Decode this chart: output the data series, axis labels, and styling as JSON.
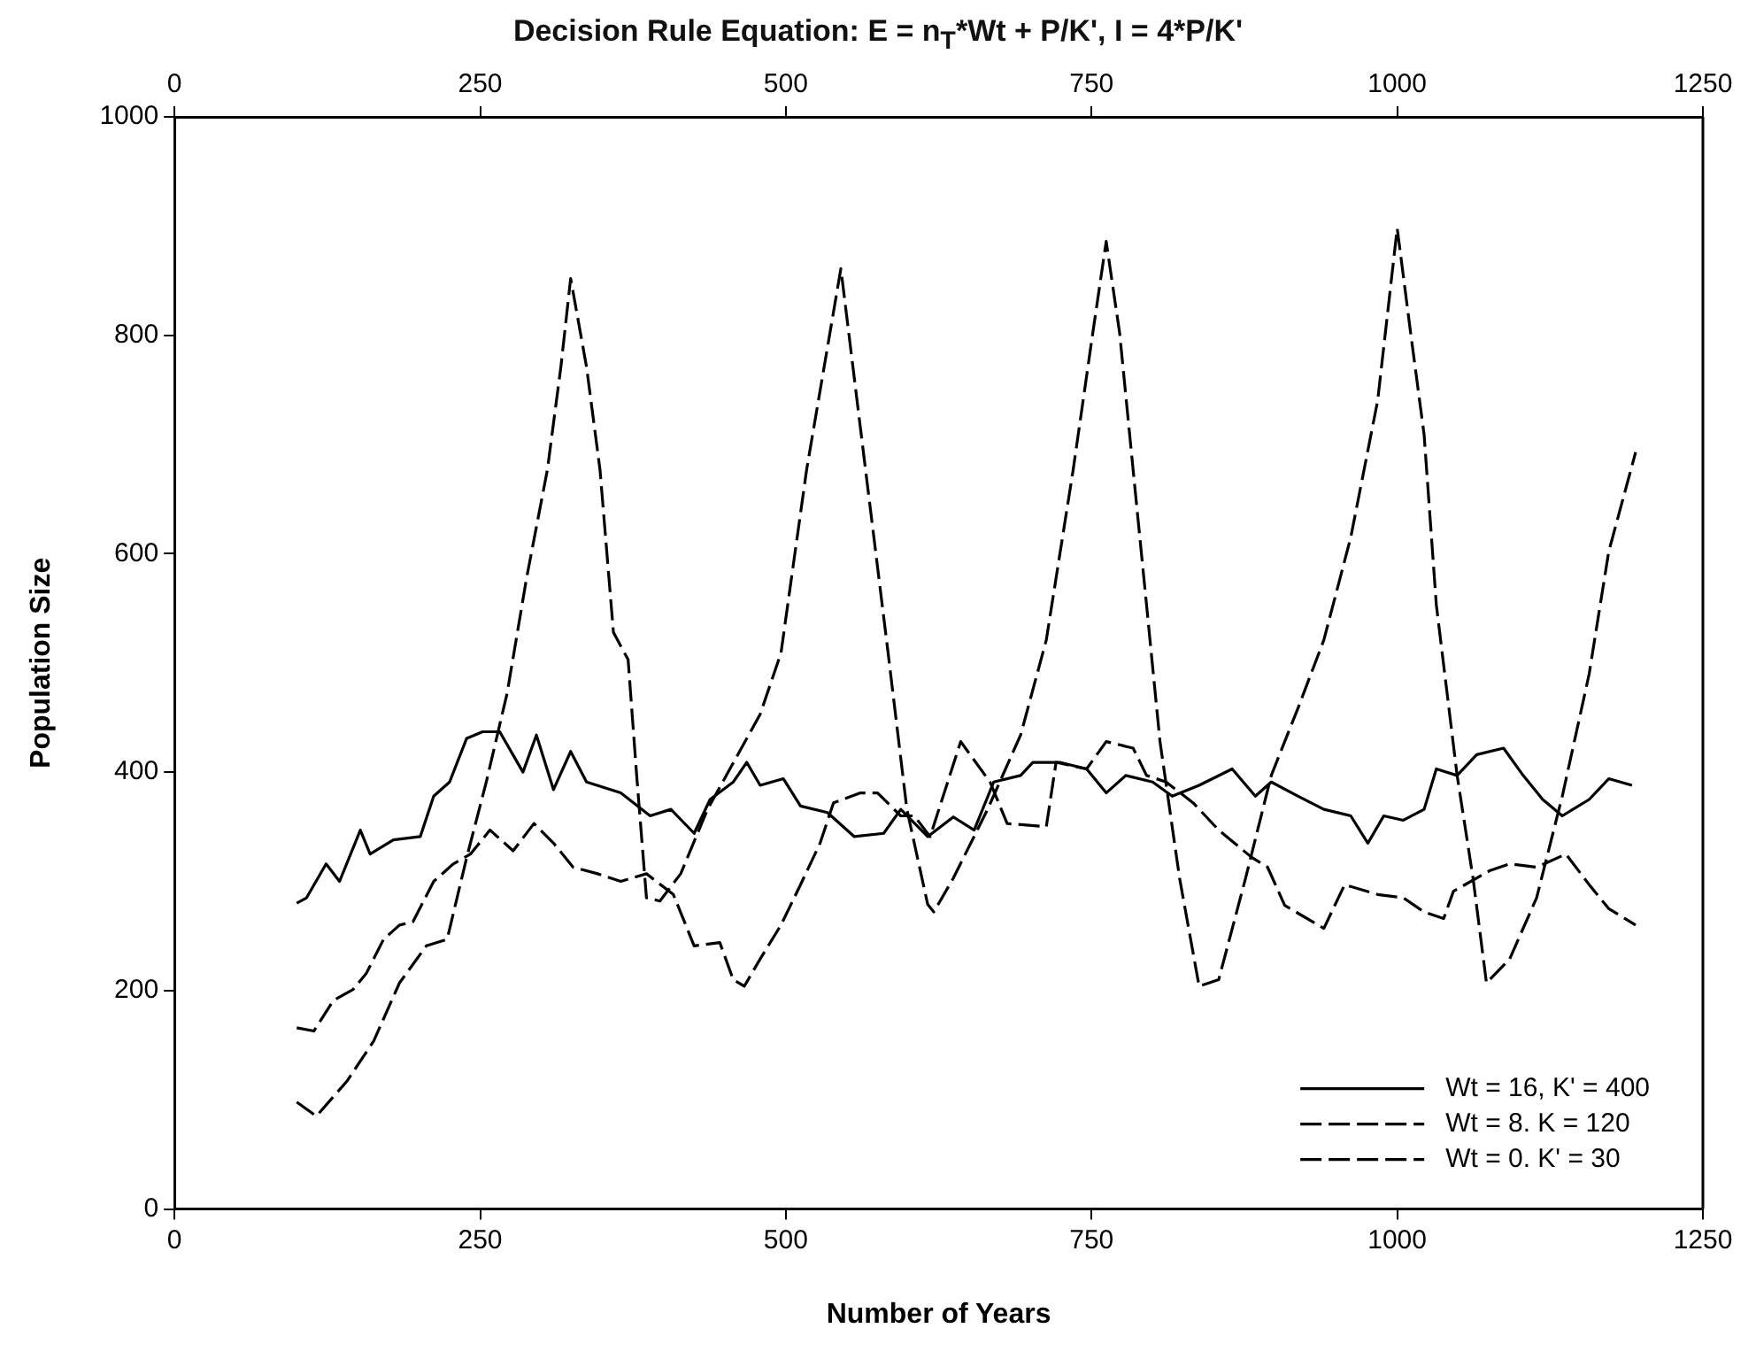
{
  "chart_data": {
    "type": "line",
    "title": "Decision Rule Equation: E = n$_{T}$*Wt + P/K', I = 4*P/K'",
    "xlabel": "Number of Years",
    "ylabel": "Population Size",
    "xlim": [
      0,
      1250
    ],
    "xticks": [
      0,
      250,
      500,
      750,
      1000,
      1250
    ],
    "x2lim": [
      0,
      1250
    ],
    "x2ticks": [
      0,
      250,
      500,
      750,
      1000,
      1250
    ],
    "ylim": [
      0,
      1000
    ],
    "yticks": [
      0,
      200,
      400,
      600,
      800,
      1000
    ],
    "grid": false,
    "legend": "bottom right",
    "marker": "none",
    "series": [
      {
        "name": "Wt = 16, K' = 400",
        "color": "#000000",
        "line_style": "solid",
        "x": [
          100,
          108,
          124,
          135,
          152,
          160,
          179,
          201,
          212,
          225,
          239,
          252,
          266,
          285,
          296,
          310,
          324,
          337,
          365,
          389,
          406,
          425,
          438,
          457,
          468,
          479,
          498,
          512,
          534,
          556,
          580,
          594,
          616,
          637,
          654,
          670,
          692,
          702,
          724,
          746,
          762,
          778,
          800,
          816,
          838,
          865,
          884,
          897,
          919,
          940,
          962,
          976,
          989,
          1005,
          1022,
          1032,
          1049,
          1065,
          1087,
          1103,
          1119,
          1135,
          1157,
          1173,
          1192
        ],
        "values": [
          280,
          285,
          316,
          300,
          347,
          325,
          338,
          341,
          378,
          391,
          431,
          437,
          437,
          400,
          434,
          384,
          419,
          391,
          381,
          360,
          366,
          344,
          375,
          391,
          409,
          388,
          394,
          369,
          363,
          341,
          344,
          366,
          341,
          359,
          347,
          391,
          397,
          409,
          409,
          403,
          381,
          397,
          391,
          378,
          388,
          403,
          378,
          391,
          378,
          366,
          360,
          335,
          360,
          356,
          366,
          403,
          397,
          416,
          422,
          397,
          375,
          360,
          375,
          394,
          388
        ]
      },
      {
        "name": "Wt = 8. K = 120",
        "color": "#000000",
        "line_style": "dashed",
        "x": [
          100,
          114,
          130,
          146,
          157,
          171,
          184,
          195,
          212,
          228,
          242,
          258,
          277,
          294,
          310,
          326,
          346,
          365,
          386,
          408,
          425,
          446,
          457,
          466,
          479,
          496,
          512,
          528,
          539,
          561,
          575,
          594,
          605,
          618,
          643,
          667,
          681,
          713,
          721,
          746,
          762,
          784,
          795,
          811,
          833,
          854,
          881,
          894,
          908,
          940,
          957,
          984,
          1005,
          1022,
          1038,
          1046,
          1076,
          1092,
          1114,
          1138,
          1157,
          1173,
          1195
        ],
        "values": [
          166,
          163,
          191,
          201,
          216,
          247,
          260,
          263,
          300,
          316,
          325,
          347,
          328,
          353,
          335,
          313,
          307,
          300,
          307,
          288,
          241,
          244,
          210,
          204,
          229,
          260,
          297,
          335,
          372,
          381,
          381,
          360,
          360,
          341,
          428,
          391,
          353,
          350,
          409,
          403,
          428,
          422,
          397,
          391,
          372,
          347,
          322,
          313,
          278,
          257,
          297,
          288,
          285,
          272,
          266,
          291,
          310,
          316,
          313,
          325,
          297,
          275,
          260
        ]
      },
      {
        "name": "Wt = 0. K' = 30",
        "color": "#000000",
        "line_style": "dashed",
        "x": [
          100,
          116,
          141,
          163,
          184,
          206,
          223,
          239,
          255,
          272,
          288,
          305,
          316,
          324,
          337,
          348,
          359,
          371,
          378,
          386,
          397,
          414,
          436,
          479,
          496,
          517,
          545,
          561,
          572,
          583,
          599,
          616,
          621,
          637,
          665,
          692,
          713,
          735,
          751,
          762,
          773,
          784,
          795,
          806,
          822,
          838,
          854,
          876,
          897,
          919,
          940,
          962,
          984,
          1000,
          1011,
          1022,
          1032,
          1049,
          1062,
          1073,
          1092,
          1114,
          1135,
          1157,
          1173,
          1195
        ],
        "values": [
          98,
          85,
          117,
          154,
          207,
          241,
          247,
          322,
          391,
          472,
          578,
          677,
          771,
          852,
          771,
          677,
          528,
          503,
          397,
          285,
          282,
          307,
          366,
          453,
          509,
          677,
          861,
          715,
          615,
          515,
          366,
          279,
          272,
          303,
          366,
          434,
          521,
          677,
          802,
          886,
          802,
          677,
          553,
          428,
          303,
          204,
          210,
          303,
          397,
          459,
          521,
          615,
          740,
          898,
          802,
          709,
          553,
          397,
          303,
          207,
          229,
          285,
          378,
          490,
          602,
          693
        ]
      }
    ]
  }
}
